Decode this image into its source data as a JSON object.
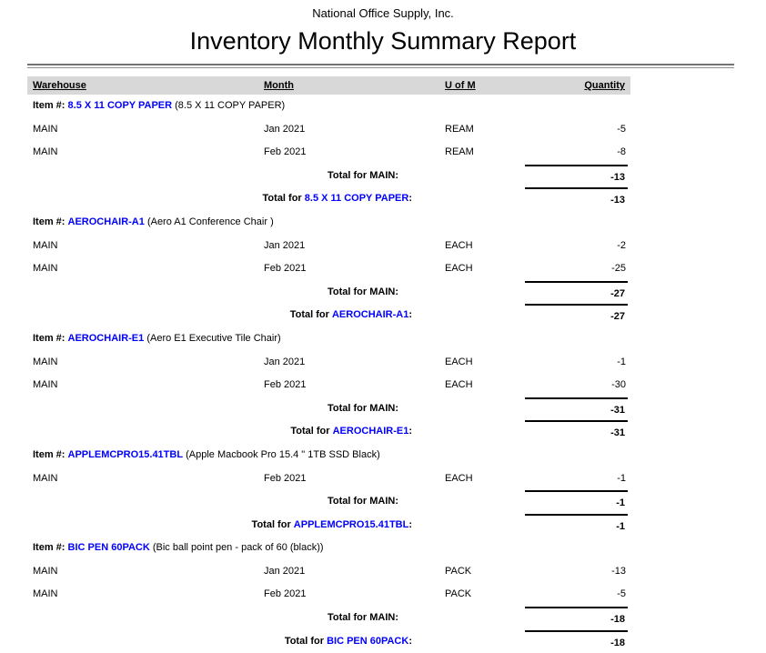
{
  "report": {
    "company": "National Office Supply, Inc.",
    "title": "Inventory Monthly Summary Report",
    "columns": {
      "warehouse": "Warehouse",
      "month": "Month",
      "uom": "U of M",
      "quantity": "Quantity"
    },
    "labels": {
      "item_prefix": "Item #:",
      "total_for": "Total for",
      "colon": ":"
    },
    "colors": {
      "link_blue": "#0000ff",
      "header_band_gray": "#d8d8d8",
      "rule_gray": "#737373"
    },
    "sections": [
      {
        "item_code": "8.5 X 11 COPY PAPER",
        "item_desc": "(8.5 X 11 COPY PAPER)",
        "rows": [
          {
            "warehouse": "MAIN",
            "month": "Jan 2021",
            "uom": "REAM",
            "qty": "-5"
          },
          {
            "warehouse": "MAIN",
            "month": "Feb 2021",
            "uom": "REAM",
            "qty": "-8"
          }
        ],
        "warehouse_total_label": "Total for MAIN:",
        "warehouse_total": "-13",
        "item_total": "-13"
      },
      {
        "item_code": "AEROCHAIR-A1",
        "item_desc": "(Aero A1 Conference Chair )",
        "rows": [
          {
            "warehouse": "MAIN",
            "month": "Jan 2021",
            "uom": "EACH",
            "qty": "-2"
          },
          {
            "warehouse": "MAIN",
            "month": "Feb 2021",
            "uom": "EACH",
            "qty": "-25"
          }
        ],
        "warehouse_total_label": "Total for MAIN:",
        "warehouse_total": "-27",
        "item_total": "-27"
      },
      {
        "item_code": "AEROCHAIR-E1",
        "item_desc": "(Aero E1 Executive Tile Chair)",
        "rows": [
          {
            "warehouse": "MAIN",
            "month": "Jan 2021",
            "uom": "EACH",
            "qty": "-1"
          },
          {
            "warehouse": "MAIN",
            "month": "Feb 2021",
            "uom": "EACH",
            "qty": "-30"
          }
        ],
        "warehouse_total_label": "Total for MAIN:",
        "warehouse_total": "-31",
        "item_total": "-31"
      },
      {
        "item_code": "APPLEMCPRO15.41TBL",
        "item_desc": "(Apple Macbook Pro 15.4 \" 1TB SSD Black)",
        "rows": [
          {
            "warehouse": "MAIN",
            "month": "Feb 2021",
            "uom": "EACH",
            "qty": "-1"
          }
        ],
        "warehouse_total_label": "Total for MAIN:",
        "warehouse_total": "-1",
        "item_total": "-1"
      },
      {
        "item_code": "BIC PEN 60PACK",
        "item_desc": "(Bic ball point pen - pack of 60 (black))",
        "rows": [
          {
            "warehouse": "MAIN",
            "month": "Jan 2021",
            "uom": "PACK",
            "qty": "-13"
          },
          {
            "warehouse": "MAIN",
            "month": "Feb 2021",
            "uom": "PACK",
            "qty": "-5"
          }
        ],
        "warehouse_total_label": "Total for MAIN:",
        "warehouse_total": "-18",
        "item_total": "-18"
      }
    ]
  }
}
